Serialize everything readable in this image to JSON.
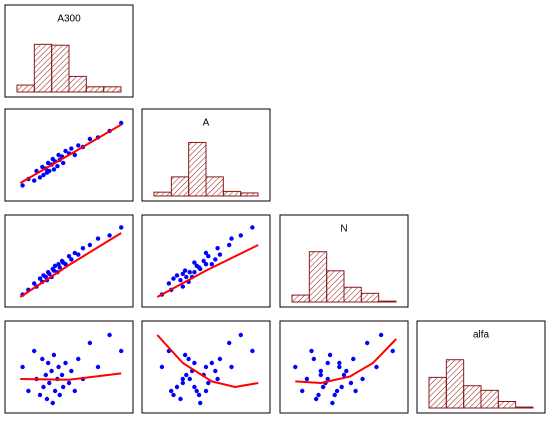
{
  "chart_data": [
    {
      "type": "histogram",
      "title": "A300",
      "bins": [
        0,
        1,
        2,
        3,
        4,
        5,
        6
      ],
      "values": [
        8,
        55,
        54,
        18,
        6,
        6
      ],
      "color": "#8b1a1a",
      "ylim": [
        0,
        75
      ]
    },
    {
      "type": "scatter",
      "x": [
        10,
        15,
        20,
        22,
        25,
        27,
        28,
        30,
        31,
        32,
        33,
        35,
        36,
        37,
        38,
        40,
        41,
        42,
        44,
        45,
        47,
        50,
        52,
        55,
        58,
        62,
        68,
        75,
        85,
        95
      ],
      "values": [
        12,
        20,
        18,
        30,
        22,
        35,
        25,
        33,
        28,
        40,
        30,
        38,
        45,
        32,
        42,
        36,
        50,
        44,
        48,
        40,
        55,
        52,
        58,
        50,
        62,
        60,
        70,
        72,
        80,
        90
      ],
      "color": "#0000ff",
      "xlim": [
        0,
        100
      ],
      "ylim": [
        0,
        100
      ],
      "fit": {
        "color": "#ff0000",
        "x": [
          8,
          50,
          95
        ],
        "values": [
          15,
          50,
          88
        ]
      }
    },
    {
      "type": "histogram",
      "title": "A",
      "bins": [
        0,
        1,
        2,
        3,
        4,
        5,
        6
      ],
      "values": [
        5,
        25,
        70,
        25,
        6,
        4
      ],
      "color": "#8b1a1a",
      "ylim": [
        0,
        85
      ]
    },
    {
      "type": "scatter",
      "x": [
        10,
        15,
        20,
        22,
        25,
        27,
        28,
        30,
        31,
        32,
        33,
        35,
        36,
        37,
        38,
        40,
        41,
        42,
        44,
        45,
        47,
        50,
        52,
        55,
        58,
        62,
        68,
        75,
        85,
        95
      ],
      "values": [
        8,
        14,
        22,
        18,
        28,
        24,
        32,
        30,
        26,
        36,
        34,
        30,
        40,
        38,
        44,
        36,
        46,
        42,
        50,
        48,
        46,
        56,
        52,
        60,
        58,
        66,
        70,
        78,
        82,
        92
      ],
      "color": "#0000ff",
      "xlim": [
        0,
        100
      ],
      "ylim": [
        0,
        100
      ],
      "fit": {
        "color": "#ff0000",
        "x": [
          8,
          50,
          95
        ],
        "values": [
          5,
          45,
          85
        ]
      }
    },
    {
      "type": "scatter",
      "x": [
        12,
        20,
        18,
        30,
        22,
        35,
        25,
        33,
        28,
        40,
        30,
        38,
        45,
        32,
        42,
        36,
        50,
        44,
        48,
        40,
        55,
        52,
        58,
        50,
        62,
        60,
        70,
        72,
        80,
        90
      ],
      "values": [
        8,
        14,
        22,
        18,
        28,
        24,
        32,
        30,
        26,
        36,
        34,
        30,
        40,
        38,
        44,
        36,
        46,
        42,
        50,
        48,
        46,
        56,
        52,
        60,
        58,
        66,
        70,
        78,
        82,
        92
      ],
      "color": "#0000ff",
      "xlim": [
        0,
        100
      ],
      "ylim": [
        0,
        100
      ],
      "fit": {
        "color": "#ff0000",
        "x": [
          8,
          50,
          95
        ],
        "values": [
          5,
          38,
          70
        ]
      }
    },
    {
      "type": "histogram",
      "title": "N",
      "bins": [
        0,
        1,
        2,
        3,
        4,
        5,
        6
      ],
      "values": [
        8,
        58,
        36,
        17,
        10,
        1
      ],
      "color": "#8b1a1a",
      "ylim": [
        0,
        75
      ]
    },
    {
      "type": "scatter",
      "x": [
        10,
        15,
        20,
        22,
        25,
        27,
        28,
        30,
        31,
        32,
        33,
        35,
        36,
        37,
        38,
        40,
        41,
        42,
        44,
        45,
        47,
        50,
        52,
        55,
        58,
        62,
        68,
        75,
        85,
        95
      ],
      "values": [
        50,
        20,
        70,
        35,
        15,
        60,
        25,
        40,
        10,
        55,
        30,
        45,
        5,
        65,
        20,
        35,
        50,
        15,
        40,
        25,
        55,
        30,
        45,
        20,
        60,
        35,
        80,
        50,
        90,
        70
      ],
      "color": "#0000ff",
      "xlim": [
        0,
        100
      ],
      "ylim": [
        0,
        100
      ],
      "fit": {
        "color": "#ff0000",
        "x": [
          8,
          50,
          95
        ],
        "values": [
          35,
          34,
          42
        ]
      }
    },
    {
      "type": "scatter",
      "x": [
        12,
        20,
        18,
        30,
        22,
        35,
        25,
        33,
        28,
        40,
        30,
        38,
        45,
        32,
        42,
        36,
        50,
        44,
        48,
        40,
        55,
        52,
        58,
        50,
        62,
        60,
        70,
        72,
        80,
        90
      ],
      "values": [
        50,
        20,
        70,
        35,
        15,
        60,
        25,
        40,
        10,
        55,
        30,
        45,
        5,
        65,
        20,
        35,
        50,
        15,
        40,
        25,
        55,
        30,
        45,
        20,
        60,
        35,
        80,
        50,
        90,
        70
      ],
      "color": "#0000ff",
      "xlim": [
        0,
        100
      ],
      "ylim": [
        0,
        100
      ],
      "fit": {
        "color": "#ff0000",
        "x": [
          8,
          30,
          55,
          75,
          95
        ],
        "values": [
          90,
          55,
          32,
          25,
          30
        ]
      }
    },
    {
      "type": "scatter",
      "x": [
        8,
        14,
        22,
        18,
        28,
        24,
        32,
        30,
        26,
        36,
        34,
        30,
        40,
        38,
        44,
        36,
        46,
        42,
        50,
        48,
        46,
        56,
        52,
        60,
        58,
        66,
        70,
        78,
        82,
        92
      ],
      "values": [
        50,
        20,
        70,
        35,
        15,
        60,
        25,
        40,
        10,
        55,
        30,
        45,
        5,
        65,
        20,
        35,
        50,
        15,
        40,
        25,
        55,
        30,
        45,
        20,
        60,
        35,
        80,
        50,
        90,
        70
      ],
      "color": "#0000ff",
      "xlim": [
        0,
        100
      ],
      "ylim": [
        0,
        100
      ],
      "fit": {
        "color": "#ff0000",
        "x": [
          8,
          30,
          55,
          75,
          95
        ],
        "values": [
          32,
          30,
          38,
          55,
          85
        ]
      }
    },
    {
      "type": "histogram",
      "title": "alfa",
      "bins": [
        0,
        1,
        2,
        3,
        4,
        5,
        6
      ],
      "values": [
        33,
        52,
        24,
        19,
        7,
        1
      ],
      "color": "#8b1a1a",
      "ylim": [
        0,
        70
      ]
    }
  ]
}
